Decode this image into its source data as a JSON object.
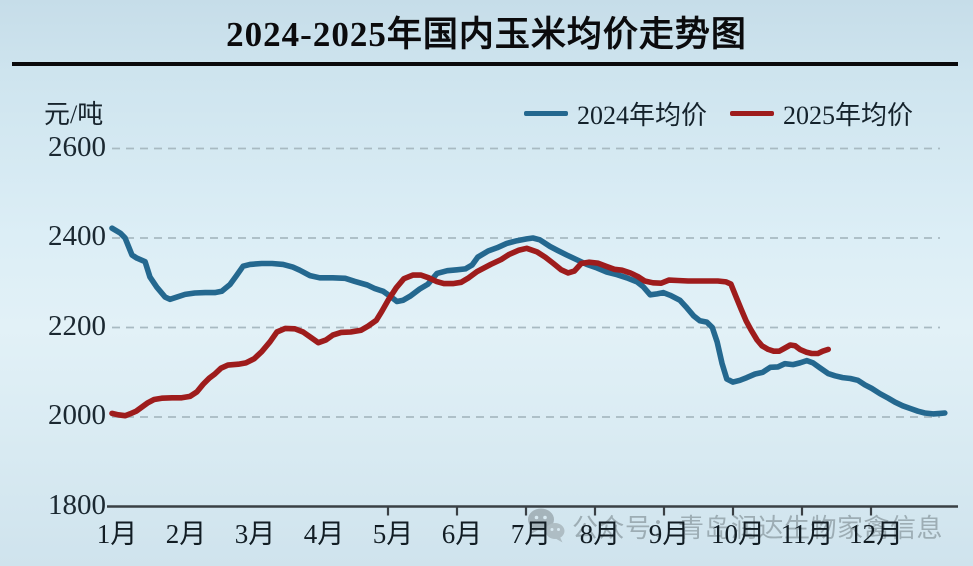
{
  "page": {
    "title": "2024-2025年国内玉米均价走势图"
  },
  "axis": {
    "unit_label": "元/吨",
    "y_ticks": [
      "2600",
      "2400",
      "2200",
      "2000",
      "1800"
    ],
    "x_ticks": [
      "1月",
      "2月",
      "3月",
      "4月",
      "5月",
      "6月",
      "7月",
      "8月",
      "9月",
      "10月",
      "11月",
      "12月"
    ]
  },
  "legend": [
    {
      "label": "2024年均价",
      "color": "#24688f"
    },
    {
      "label": "2025年均价",
      "color": "#9e1c1c"
    }
  ],
  "watermark": {
    "icon": "wechat-icon",
    "text": "公众号：青岛润达生物家禽信息"
  },
  "chart_data": {
    "type": "line",
    "title": "2024-2025年国内玉米均价走势图",
    "ylabel": "元/吨",
    "ylim": [
      1800,
      2600
    ],
    "y_gridlines": [
      2000,
      2200,
      2400,
      2600
    ],
    "grid": "dashed-horizontal",
    "legend_position": "top-right",
    "x_axis": "months 1-12 (x value 1.0 = start of January, 13.0 = end of December)",
    "x_tick_marks_months": [
      5,
      6,
      7,
      8,
      9,
      10,
      11,
      12
    ],
    "series": [
      {
        "name": "2024年均价",
        "color": "#24688f",
        "points": [
          [
            1.0,
            2422
          ],
          [
            1.12,
            2411
          ],
          [
            1.19,
            2400
          ],
          [
            1.29,
            2362
          ],
          [
            1.36,
            2355
          ],
          [
            1.48,
            2347
          ],
          [
            1.55,
            2313
          ],
          [
            1.65,
            2290
          ],
          [
            1.77,
            2268
          ],
          [
            1.84,
            2263
          ],
          [
            1.94,
            2268
          ],
          [
            2.06,
            2274
          ],
          [
            2.2,
            2277
          ],
          [
            2.35,
            2278
          ],
          [
            2.49,
            2278
          ],
          [
            2.59,
            2281
          ],
          [
            2.71,
            2296
          ],
          [
            2.8,
            2315
          ],
          [
            2.9,
            2337
          ],
          [
            3.0,
            2341
          ],
          [
            3.17,
            2343
          ],
          [
            3.32,
            2343
          ],
          [
            3.48,
            2341
          ],
          [
            3.62,
            2335
          ],
          [
            3.72,
            2328
          ],
          [
            3.87,
            2316
          ],
          [
            4.01,
            2311
          ],
          [
            4.2,
            2311
          ],
          [
            4.38,
            2310
          ],
          [
            4.52,
            2303
          ],
          [
            4.7,
            2295
          ],
          [
            4.81,
            2287
          ],
          [
            4.93,
            2281
          ],
          [
            5.03,
            2270
          ],
          [
            5.13,
            2258
          ],
          [
            5.22,
            2261
          ],
          [
            5.32,
            2270
          ],
          [
            5.46,
            2286
          ],
          [
            5.58,
            2297
          ],
          [
            5.71,
            2321
          ],
          [
            5.86,
            2327
          ],
          [
            6.0,
            2329
          ],
          [
            6.12,
            2331
          ],
          [
            6.22,
            2340
          ],
          [
            6.3,
            2357
          ],
          [
            6.45,
            2371
          ],
          [
            6.58,
            2378
          ],
          [
            6.72,
            2388
          ],
          [
            6.87,
            2394
          ],
          [
            7.01,
            2398
          ],
          [
            7.1,
            2400
          ],
          [
            7.2,
            2396
          ],
          [
            7.35,
            2381
          ],
          [
            7.46,
            2372
          ],
          [
            7.59,
            2362
          ],
          [
            7.74,
            2351
          ],
          [
            7.88,
            2341
          ],
          [
            8.03,
            2333
          ],
          [
            8.17,
            2324
          ],
          [
            8.32,
            2318
          ],
          [
            8.46,
            2311
          ],
          [
            8.61,
            2302
          ],
          [
            8.7,
            2291
          ],
          [
            8.8,
            2273
          ],
          [
            8.9,
            2275
          ],
          [
            8.99,
            2278
          ],
          [
            9.09,
            2272
          ],
          [
            9.23,
            2261
          ],
          [
            9.33,
            2244
          ],
          [
            9.43,
            2226
          ],
          [
            9.52,
            2215
          ],
          [
            9.62,
            2212
          ],
          [
            9.7,
            2200
          ],
          [
            9.77,
            2168
          ],
          [
            9.84,
            2120
          ],
          [
            9.91,
            2085
          ],
          [
            10.0,
            2078
          ],
          [
            10.1,
            2082
          ],
          [
            10.2,
            2088
          ],
          [
            10.32,
            2096
          ],
          [
            10.43,
            2100
          ],
          [
            10.54,
            2111
          ],
          [
            10.65,
            2112
          ],
          [
            10.75,
            2119
          ],
          [
            10.87,
            2117
          ],
          [
            10.97,
            2121
          ],
          [
            11.07,
            2126
          ],
          [
            11.16,
            2121
          ],
          [
            11.26,
            2110
          ],
          [
            11.38,
            2097
          ],
          [
            11.48,
            2092
          ],
          [
            11.59,
            2088
          ],
          [
            11.7,
            2086
          ],
          [
            11.81,
            2082
          ],
          [
            11.91,
            2072
          ],
          [
            12.01,
            2064
          ],
          [
            12.13,
            2052
          ],
          [
            12.25,
            2042
          ],
          [
            12.35,
            2033
          ],
          [
            12.46,
            2025
          ],
          [
            12.57,
            2019
          ],
          [
            12.68,
            2013
          ],
          [
            12.78,
            2009
          ],
          [
            12.9,
            2007
          ],
          [
            13.0,
            2008
          ],
          [
            13.07,
            2009
          ]
        ]
      },
      {
        "name": "2025年均价",
        "color": "#9e1c1c",
        "points": [
          [
            1.0,
            2008
          ],
          [
            1.09,
            2005
          ],
          [
            1.19,
            2003
          ],
          [
            1.26,
            2007
          ],
          [
            1.35,
            2013
          ],
          [
            1.43,
            2022
          ],
          [
            1.52,
            2032
          ],
          [
            1.61,
            2039
          ],
          [
            1.72,
            2042
          ],
          [
            1.87,
            2043
          ],
          [
            2.01,
            2043
          ],
          [
            2.13,
            2046
          ],
          [
            2.23,
            2056
          ],
          [
            2.32,
            2073
          ],
          [
            2.41,
            2087
          ],
          [
            2.49,
            2096
          ],
          [
            2.58,
            2109
          ],
          [
            2.68,
            2116
          ],
          [
            2.83,
            2118
          ],
          [
            2.94,
            2121
          ],
          [
            3.06,
            2130
          ],
          [
            3.17,
            2146
          ],
          [
            3.29,
            2168
          ],
          [
            3.39,
            2190
          ],
          [
            3.51,
            2198
          ],
          [
            3.65,
            2197
          ],
          [
            3.77,
            2190
          ],
          [
            3.88,
            2178
          ],
          [
            3.99,
            2166
          ],
          [
            4.1,
            2172
          ],
          [
            4.2,
            2183
          ],
          [
            4.32,
            2189
          ],
          [
            4.46,
            2190
          ],
          [
            4.61,
            2194
          ],
          [
            4.71,
            2203
          ],
          [
            4.83,
            2216
          ],
          [
            4.91,
            2236
          ],
          [
            5.01,
            2263
          ],
          [
            5.12,
            2289
          ],
          [
            5.23,
            2309
          ],
          [
            5.36,
            2317
          ],
          [
            5.48,
            2317
          ],
          [
            5.59,
            2311
          ],
          [
            5.7,
            2303
          ],
          [
            5.81,
            2298
          ],
          [
            5.94,
            2298
          ],
          [
            6.06,
            2301
          ],
          [
            6.17,
            2311
          ],
          [
            6.29,
            2325
          ],
          [
            6.39,
            2333
          ],
          [
            6.49,
            2341
          ],
          [
            6.64,
            2352
          ],
          [
            6.75,
            2363
          ],
          [
            6.9,
            2373
          ],
          [
            7.01,
            2377
          ],
          [
            7.16,
            2369
          ],
          [
            7.28,
            2357
          ],
          [
            7.39,
            2344
          ],
          [
            7.51,
            2329
          ],
          [
            7.61,
            2322
          ],
          [
            7.7,
            2326
          ],
          [
            7.8,
            2343
          ],
          [
            7.91,
            2346
          ],
          [
            8.04,
            2344
          ],
          [
            8.16,
            2337
          ],
          [
            8.28,
            2330
          ],
          [
            8.39,
            2328
          ],
          [
            8.51,
            2322
          ],
          [
            8.62,
            2314
          ],
          [
            8.72,
            2304
          ],
          [
            8.84,
            2300
          ],
          [
            8.96,
            2299
          ],
          [
            9.07,
            2306
          ],
          [
            9.2,
            2305
          ],
          [
            9.35,
            2304
          ],
          [
            9.49,
            2304
          ],
          [
            9.64,
            2304
          ],
          [
            9.78,
            2304
          ],
          [
            9.9,
            2302
          ],
          [
            9.97,
            2297
          ],
          [
            10.04,
            2270
          ],
          [
            10.12,
            2240
          ],
          [
            10.19,
            2215
          ],
          [
            10.26,
            2195
          ],
          [
            10.35,
            2172
          ],
          [
            10.42,
            2159
          ],
          [
            10.51,
            2151
          ],
          [
            10.59,
            2147
          ],
          [
            10.67,
            2147
          ],
          [
            10.74,
            2153
          ],
          [
            10.83,
            2161
          ],
          [
            10.9,
            2159
          ],
          [
            10.97,
            2151
          ],
          [
            11.06,
            2145
          ],
          [
            11.14,
            2142
          ],
          [
            11.23,
            2142
          ],
          [
            11.3,
            2147
          ],
          [
            11.38,
            2151
          ]
        ]
      }
    ]
  }
}
